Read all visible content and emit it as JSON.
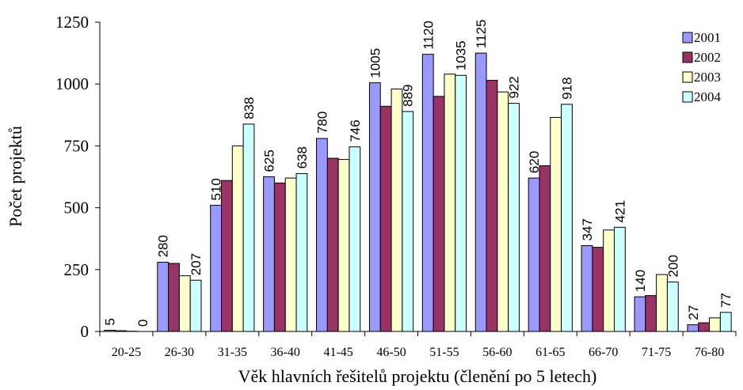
{
  "chart_data": {
    "type": "bar",
    "title": "",
    "xlabel": "Věk hlavních řešitelů projektu (členění po 5 letech)",
    "ylabel": "Počet projektů",
    "ylim": [
      0,
      1250
    ],
    "yticks": [
      0,
      250,
      500,
      750,
      1000,
      1250
    ],
    "grid": false,
    "legend_position": "top-right",
    "categories": [
      "20-25",
      "26-30",
      "31-35",
      "36-40",
      "41-45",
      "46-50",
      "51-55",
      "56-60",
      "61-65",
      "66-70",
      "71-75",
      "76-80"
    ],
    "series": [
      {
        "name": "2001",
        "color": "#9999ff",
        "values": [
          5,
          280,
          510,
          625,
          780,
          1005,
          1120,
          1125,
          620,
          347,
          140,
          27
        ]
      },
      {
        "name": "2002",
        "color": "#993366",
        "values": [
          3,
          275,
          610,
          600,
          700,
          910,
          950,
          1015,
          670,
          340,
          145,
          35
        ]
      },
      {
        "name": "2003",
        "color": "#ffffcc",
        "values": [
          1,
          225,
          750,
          620,
          695,
          980,
          1040,
          968,
          865,
          410,
          230,
          55
        ]
      },
      {
        "name": "2004",
        "color": "#ccffff",
        "values": [
          0,
          207,
          838,
          638,
          746,
          889,
          1035,
          922,
          918,
          421,
          200,
          77
        ]
      }
    ],
    "data_labels": [
      {
        "category": "20-25",
        "series": "2001",
        "text": "5"
      },
      {
        "category": "20-25",
        "series": "2004",
        "text": "0"
      },
      {
        "category": "26-30",
        "series": "2001",
        "text": "280"
      },
      {
        "category": "26-30",
        "series": "2004",
        "text": "207"
      },
      {
        "category": "31-35",
        "series": "2001",
        "text": "510"
      },
      {
        "category": "31-35",
        "series": "2004",
        "text": "838"
      },
      {
        "category": "36-40",
        "series": "2001",
        "text": "625"
      },
      {
        "category": "36-40",
        "series": "2004",
        "text": "638"
      },
      {
        "category": "41-45",
        "series": "2001",
        "text": "780"
      },
      {
        "category": "41-45",
        "series": "2004",
        "text": "746"
      },
      {
        "category": "46-50",
        "series": "2001",
        "text": "1005"
      },
      {
        "category": "46-50",
        "series": "2004",
        "text": "889"
      },
      {
        "category": "51-55",
        "series": "2001",
        "text": "1120"
      },
      {
        "category": "51-55",
        "series": "2004",
        "text": "1035"
      },
      {
        "category": "56-60",
        "series": "2001",
        "text": "1125"
      },
      {
        "category": "56-60",
        "series": "2004",
        "text": "922"
      },
      {
        "category": "61-65",
        "series": "2001",
        "text": "620"
      },
      {
        "category": "61-65",
        "series": "2004",
        "text": "918"
      },
      {
        "category": "66-70",
        "series": "2001",
        "text": "347"
      },
      {
        "category": "66-70",
        "series": "2004",
        "text": "421"
      },
      {
        "category": "71-75",
        "series": "2001",
        "text": "140"
      },
      {
        "category": "71-75",
        "series": "2004",
        "text": "200"
      },
      {
        "category": "76-80",
        "series": "2001",
        "text": "27"
      },
      {
        "category": "76-80",
        "series": "2004",
        "text": "77"
      }
    ]
  }
}
